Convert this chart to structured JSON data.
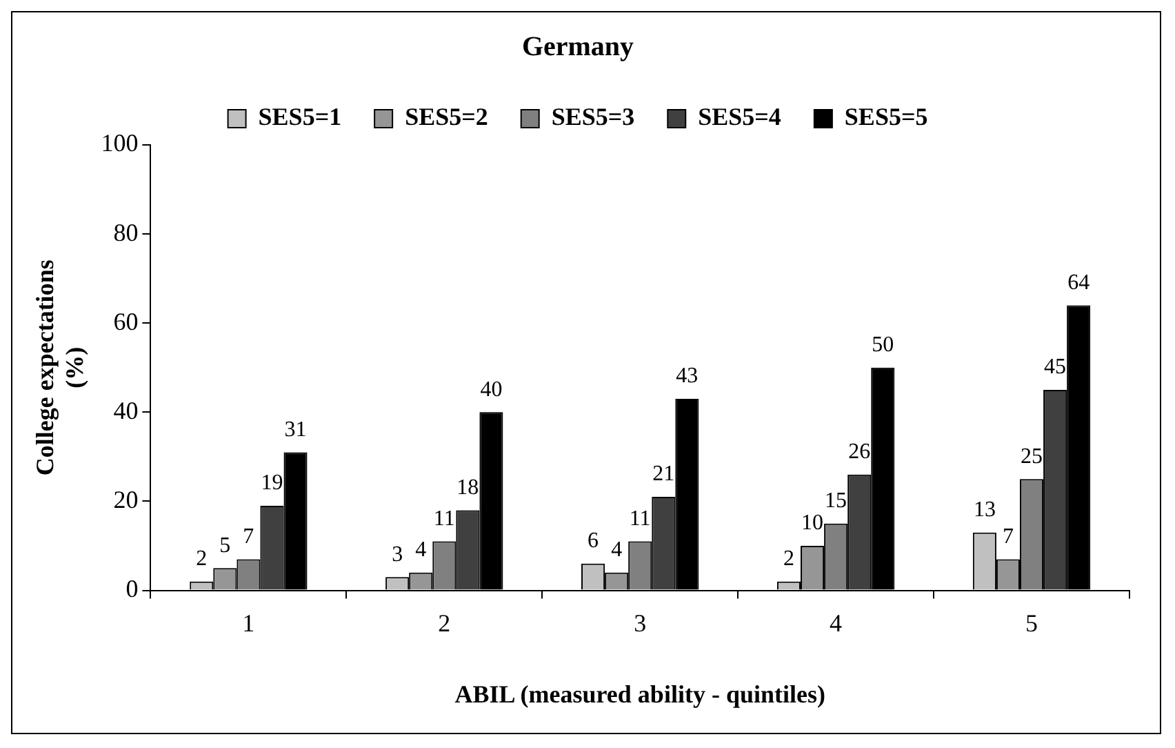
{
  "chart_data": {
    "type": "bar",
    "title": "Germany",
    "xlabel": "ABIL (measured ability - quintiles)",
    "ylabel": "College expectations (%)",
    "categories": [
      "1",
      "2",
      "3",
      "4",
      "5"
    ],
    "series": [
      {
        "name": "SES5=1",
        "color": "#c0c0c0",
        "values": [
          2,
          3,
          6,
          2,
          13
        ]
      },
      {
        "name": "SES5=2",
        "color": "#969696",
        "values": [
          5,
          4,
          4,
          10,
          7
        ]
      },
      {
        "name": "SES5=3",
        "color": "#808080",
        "values": [
          7,
          11,
          11,
          15,
          25
        ]
      },
      {
        "name": "SES5=4",
        "color": "#404040",
        "values": [
          19,
          18,
          21,
          26,
          45
        ]
      },
      {
        "name": "SES5=5",
        "color": "#000000",
        "values": [
          31,
          40,
          43,
          50,
          64
        ]
      }
    ],
    "ylim": [
      0,
      100
    ],
    "yticks": [
      0,
      20,
      40,
      60,
      80,
      100
    ],
    "data_labels": true,
    "legend": "top"
  }
}
